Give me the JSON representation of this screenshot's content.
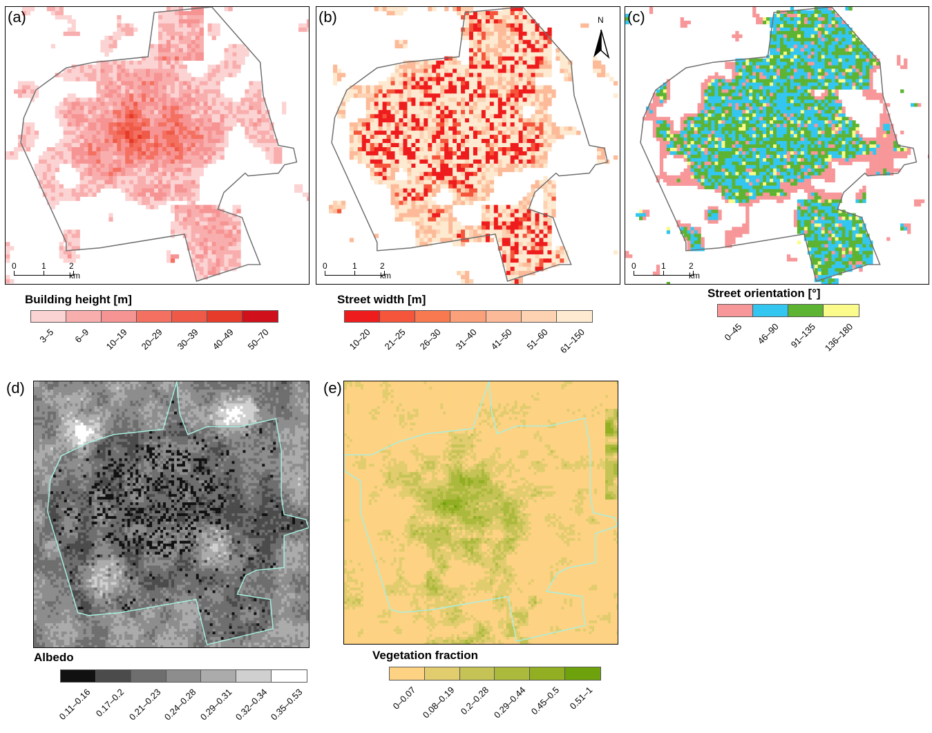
{
  "panels": [
    {
      "id": "a",
      "label": "(a)",
      "scale": {
        "t0": "0",
        "t1": "1",
        "t2": "2 km"
      },
      "legend": {
        "title": "Building height [m]",
        "classes": [
          {
            "label": "3–5",
            "color": "#fcd3d3"
          },
          {
            "label": "6–9",
            "color": "#f9aeae"
          },
          {
            "label": "10–19",
            "color": "#f69393"
          },
          {
            "label": "20–29",
            "color": "#f47060"
          },
          {
            "label": "30–39",
            "color": "#ef5a48"
          },
          {
            "label": "40–49",
            "color": "#e63a2a"
          },
          {
            "label": "50–70",
            "color": "#d0111b"
          }
        ]
      }
    },
    {
      "id": "b",
      "label": "(b)",
      "scale": {
        "t0": "0",
        "t1": "1",
        "t2": "2 km"
      },
      "north": "N",
      "legend": {
        "title": "Street width [m]",
        "classes": [
          {
            "label": "10–20",
            "color": "#ee1c1c"
          },
          {
            "label": "21–25",
            "color": "#f4553b"
          },
          {
            "label": "26–30",
            "color": "#f8794f"
          },
          {
            "label": "31–40",
            "color": "#faa07a"
          },
          {
            "label": "41–50",
            "color": "#fcba98"
          },
          {
            "label": "51–60",
            "color": "#fdd2b2"
          },
          {
            "label": "61–150",
            "color": "#feead0"
          }
        ]
      }
    },
    {
      "id": "c",
      "label": "(c)",
      "scale": {
        "t0": "0",
        "t1": "1",
        "t2": "2 km"
      },
      "legend": {
        "title": "Street orientation [°]",
        "classes": [
          {
            "label": "0–45",
            "color": "#f79799"
          },
          {
            "label": "46–90",
            "color": "#33c6f0"
          },
          {
            "label": "91–135",
            "color": "#5db332"
          },
          {
            "label": "136–180",
            "color": "#fafb8a"
          }
        ]
      }
    },
    {
      "id": "d",
      "label": "(d)",
      "legend": {
        "title": "Albedo",
        "classes": [
          {
            "label": "0.11–0.16",
            "color": "#111111"
          },
          {
            "label": "0.17–0.2",
            "color": "#4b4b4b"
          },
          {
            "label": "0.21–0.23",
            "color": "#6e6e6e"
          },
          {
            "label": "0.24–0.28",
            "color": "#8d8d8d"
          },
          {
            "label": "0.29–0.31",
            "color": "#ababab"
          },
          {
            "label": "0.32–0.34",
            "color": "#d0d0d0"
          },
          {
            "label": "0.35–0.53",
            "color": "#ffffff"
          }
        ]
      }
    },
    {
      "id": "e",
      "label": "(e)",
      "legend": {
        "title": "Vegetation fraction",
        "classes": [
          {
            "label": "0–0.07",
            "color": "#fdd283"
          },
          {
            "label": "0.08–0.19",
            "color": "#e1cc6e"
          },
          {
            "label": "0.2–0.28",
            "color": "#c5c356"
          },
          {
            "label": "0.29–0.44",
            "color": "#abb93c"
          },
          {
            "label": "0.45–0.5",
            "color": "#92ae22"
          },
          {
            "label": "0.51–1",
            "color": "#6da20d"
          }
        ]
      }
    }
  ],
  "colors": {
    "boundary_gray": "#6e6e6e",
    "boundary_cyan": "#a8f0e0"
  }
}
